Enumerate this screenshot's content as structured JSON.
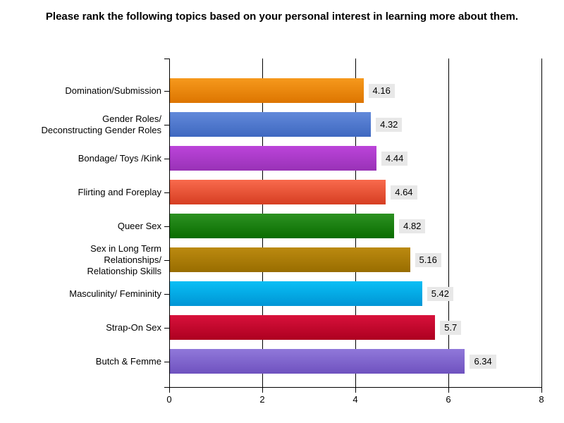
{
  "chart_data": {
    "type": "bar",
    "orientation": "horizontal",
    "title": "Please rank the following topics based on your personal interest in learning more about them.",
    "categories": [
      "Domination/Submission",
      "Gender Roles/ Deconstructing Gender Roles",
      "Bondage/ Toys /Kink",
      "Flirting and Foreplay",
      "Queer Sex",
      "Sex in Long Term Relationships/ Relationship Skills",
      "Masculinity/ Femininity",
      "Strap-On Sex",
      "Butch & Femme"
    ],
    "category_label_lines": [
      [
        "Domination/Submission"
      ],
      [
        "Gender Roles/",
        "Deconstructing Gender Roles"
      ],
      [
        "Bondage/ Toys /Kink"
      ],
      [
        "Flirting and Foreplay"
      ],
      [
        "Queer Sex"
      ],
      [
        "Sex in Long Term",
        "Relationships/",
        "Relationship Skills"
      ],
      [
        "Masculinity/ Femininity"
      ],
      [
        "Strap-On Sex"
      ],
      [
        "Butch & Femme"
      ]
    ],
    "values": [
      4.16,
      4.32,
      4.44,
      4.64,
      4.82,
      5.16,
      5.42,
      5.7,
      6.34
    ],
    "value_labels": [
      "4.16",
      "4.32",
      "4.44",
      "4.64",
      "4.82",
      "5.16",
      "5.42",
      "5.7",
      "6.34"
    ],
    "bar_colors": [
      {
        "top": "#f6991c",
        "bottom": "#dd7500"
      },
      {
        "top": "#6289da",
        "bottom": "#3e68c0"
      },
      {
        "top": "#bc44da",
        "bottom": "#9932b6"
      },
      {
        "top": "#f96a4d",
        "bottom": "#d63e22"
      },
      {
        "top": "#2d9222",
        "bottom": "#0a6c00"
      },
      {
        "top": "#bb8a10",
        "bottom": "#996d00"
      },
      {
        "top": "#09bff5",
        "bottom": "#0095d5"
      },
      {
        "top": "#d8113b",
        "bottom": "#ad0020"
      },
      {
        "top": "#9078da",
        "bottom": "#6f52bf"
      }
    ],
    "xlim": [
      0,
      8
    ],
    "x_ticks": [
      0,
      2,
      4,
      6,
      8
    ],
    "x_tick_labels": [
      "0",
      "2",
      "4",
      "6",
      "8"
    ],
    "grid": "vertical solid",
    "grid_color": "#000000",
    "value_label_bg": "#e8e8e8",
    "legend": "none"
  }
}
